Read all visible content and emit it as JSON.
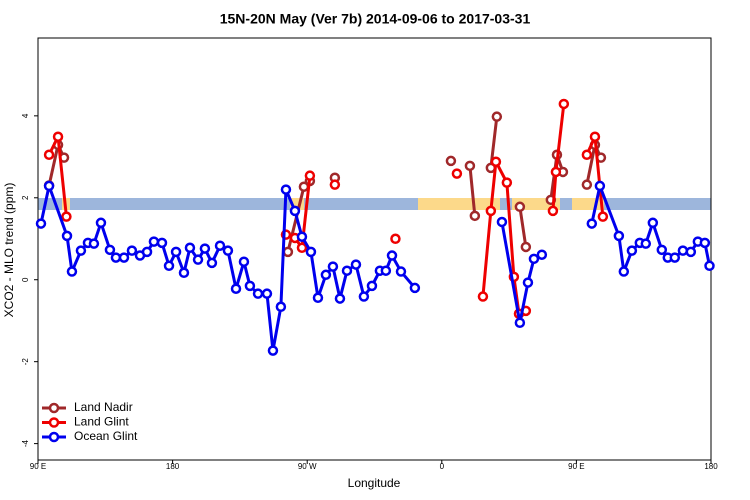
{
  "chart_data": {
    "type": "line",
    "title": "15N-20N May (Ver 7b)   2014-09-06 to 2017-03-31",
    "x_label": "Longitude",
    "y_label": "XCO2 - MLO trend (ppm)",
    "xlim": [
      90,
      540
    ],
    "ylim": [
      -4.4,
      5.9
    ],
    "xticks": [
      {
        "value": 90,
        "label": "90 E"
      },
      180,
      {
        "value": 270,
        "label": "90 W"
      },
      {
        "value": 360,
        "label": "0"
      },
      {
        "value": 450,
        "label": "90 E"
      },
      {
        "value": 540,
        "label": "180"
      }
    ],
    "yticks": [
      -4,
      -2,
      0,
      2,
      4
    ],
    "legend": "bottom-left",
    "series": [
      {
        "name": "Land Nadir",
        "color": "#a0282a",
        "x": [
          97.4,
          103.4,
          107.4,
          null,
          257.1,
          267.8,
          271.8,
          null,
          288.5,
          null,
          366.1,
          null,
          378.8,
          382.1,
          null,
          392.8,
          396.8,
          null,
          412.2,
          416.2,
          null,
          432.9,
          437.0,
          441.0,
          null,
          457.0,
          462.4,
          466.4
        ],
        "values": [
          2.3,
          3.29,
          2.98,
          null,
          0.68,
          2.27,
          2.41,
          null,
          2.49,
          null,
          2.9,
          null,
          2.78,
          1.56,
          null,
          2.73,
          3.98,
          null,
          1.78,
          0.8,
          null,
          1.95,
          3.05,
          2.63,
          null,
          2.32,
          3.29,
          2.98
        ]
      },
      {
        "name": "Land Glint",
        "color": "#ee0000",
        "x": [
          97.4,
          103.4,
          109.0,
          null,
          255.8,
          261.8,
          266.5,
          271.8,
          null,
          288.5,
          null,
          329.0,
          null,
          370.1,
          null,
          387.5,
          392.8,
          396.2,
          403.5,
          408.2,
          411.6,
          null,
          416.2,
          null,
          434.3,
          436.3,
          441.6,
          null,
          457.0,
          462.4,
          467.7
        ],
        "values": [
          3.05,
          3.49,
          1.54,
          null,
          1.1,
          1.02,
          0.78,
          2.54,
          null,
          2.32,
          null,
          1.0,
          null,
          2.59,
          null,
          -0.41,
          1.68,
          2.88,
          2.37,
          0.07,
          -0.83,
          null,
          -0.76,
          null,
          1.68,
          2.63,
          4.29,
          null,
          3.05,
          3.49,
          1.54
        ]
      },
      {
        "name": "Ocean Glint",
        "color": "#0000ee",
        "x": [
          92.0,
          97.4,
          109.4,
          112.7,
          118.7,
          123.4,
          127.4,
          132.1,
          138.1,
          142.1,
          147.5,
          152.8,
          158.2,
          162.9,
          167.5,
          172.9,
          177.6,
          182.3,
          187.6,
          191.6,
          197.0,
          201.6,
          206.3,
          211.7,
          217.0,
          222.4,
          227.7,
          231.7,
          237.1,
          243.1,
          247.1,
          252.4,
          255.8,
          261.8,
          266.5,
          272.5,
          277.2,
          282.5,
          287.2,
          291.9,
          296.6,
          302.6,
          307.9,
          313.3,
          318.6,
          322.6,
          326.7,
          332.7,
          342.0,
          null,
          400.2,
          412.2,
          417.6,
          421.6,
          426.9,
          null,
          460.3,
          465.7,
          478.4,
          481.7,
          487.1,
          492.4,
          496.4,
          501.1,
          507.1,
          511.1,
          515.8,
          521.2,
          526.5,
          531.2,
          535.9,
          539.0
        ],
        "values": [
          1.37,
          2.29,
          1.07,
          0.2,
          0.71,
          0.9,
          0.88,
          1.39,
          0.73,
          0.54,
          0.54,
          0.71,
          0.59,
          0.68,
          0.93,
          0.9,
          0.34,
          0.68,
          0.17,
          0.78,
          0.49,
          0.76,
          0.41,
          0.83,
          0.71,
          -0.22,
          0.44,
          -0.15,
          -0.34,
          -0.34,
          -1.73,
          -0.66,
          2.2,
          1.68,
          1.05,
          0.68,
          -0.44,
          0.12,
          0.32,
          -0.46,
          0.22,
          0.37,
          -0.41,
          -0.15,
          0.22,
          0.22,
          0.59,
          0.2,
          -0.2,
          null,
          1.41,
          -1.05,
          -0.07,
          0.51,
          0.61,
          null,
          1.37,
          2.29,
          1.07,
          0.2,
          0.71,
          0.9,
          0.88,
          1.39,
          0.73,
          0.54,
          0.54,
          0.71,
          0.68,
          0.93,
          0.9,
          0.34
        ]
      }
    ]
  }
}
